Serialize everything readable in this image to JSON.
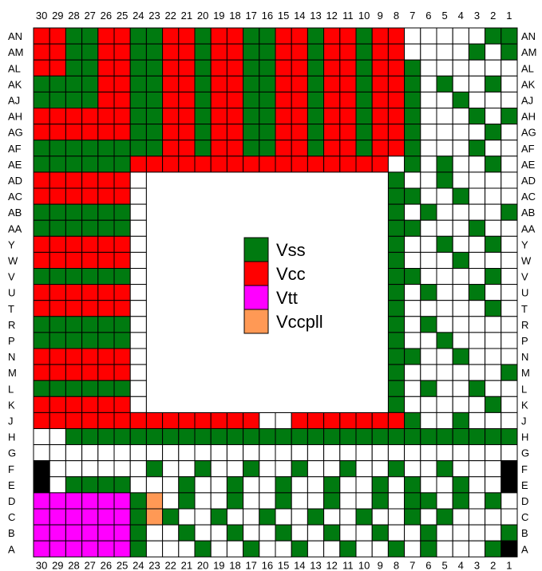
{
  "columns": [
    "30",
    "29",
    "28",
    "27",
    "26",
    "25",
    "24",
    "23",
    "22",
    "21",
    "20",
    "19",
    "18",
    "17",
    "16",
    "15",
    "14",
    "13",
    "12",
    "11",
    "10",
    "9",
    "8",
    "7",
    "6",
    "5",
    "4",
    "3",
    "2",
    "1"
  ],
  "rows": [
    "AN",
    "AM",
    "AL",
    "AK",
    "AJ",
    "AH",
    "AG",
    "AF",
    "AE",
    "AD",
    "AC",
    "AB",
    "AA",
    "Y",
    "W",
    "V",
    "U",
    "T",
    "R",
    "P",
    "N",
    "M",
    "L",
    "K",
    "J",
    "H",
    "G",
    "F",
    "E",
    "D",
    "C",
    "B",
    "A"
  ],
  "legend": [
    {
      "code": "G",
      "label": "Vss",
      "color": "#007a10"
    },
    {
      "code": "R",
      "label": "Vcc",
      "color": "#ff0000"
    },
    {
      "code": "M",
      "label": "Vtt",
      "color": "#ff00ff"
    },
    {
      "code": "O",
      "label": "Vccpll",
      "color": "#ff9955"
    }
  ],
  "other_colors": {
    "K": "#000000",
    "W": "#ffffff",
    "grid": "#000000"
  },
  "center_void": {
    "rows": [
      9,
      23
    ],
    "cols": [
      7,
      21
    ]
  },
  "grid": [
    "RRGGRRGGRRGRRGGRRGRRGRRWWWWWGG",
    "RRGGRRGGRRGRRGGRRGRRGRRWWWWGWG",
    "RRGGRRGGRRGRRGGRRGRRGRRGWWWWWW",
    "GGGGRRGGRRGRRGGRRGRRGRRGWGWWGW",
    "GGGGRRGGRRGRRGGRRGRRGRRGWWGWWW",
    "RRRRRRGGRRGRRGGRRGRRGRRGWWWGWG",
    "RRRRRRGGRRGRRGGRRGRRGRRGWWWWGW",
    "GGGGGGGGRRGRRGGRRGRRGRRGWWWGWW",
    "GGGGGGRRRRRRRRRRRRRRRRWGWGWWGW",
    "RRRRRRWWWWWWWWWWWWWWWRGWWGWWWW",
    "RRRRRRWWWWWWWWWWWWWWWRGGWWGWWW",
    "GGGGGGWWWWWWWWWWWWWWWRGWGWWWWG",
    "GGGGGGWWWWWWWWWWWWWWWRGGWWWGWW",
    "RRRRRRWWWWWWWWWWWWWWWRGWWGWWGW",
    "RRRRRRWWWWWWWWWWWWWWWRGWWWGWWW",
    "GGGGGGWWWWWWWWWWWWWWWRGGWWWWGW",
    "RRRRRRWWWWWWWWWWWWWWWRGWGWWGWW",
    "RRRRRRWWWWWWWWWWWWWWWRGWWWWWGW",
    "GGGGGGWWWWWWWWWWWWWWWRGWGWWWWW",
    "GGGGGGWWWWWWWWWWWWWWWRGWWGWWWW",
    "RRRRRRWWWWWWWWWWWWWWWRGGWWGWWW",
    "RRRRRRWWWWWWWWWWWWWWWRGWWWWWWG",
    "GGGGGGWWWWWWWWWWWWWWWRGWGWWGWW",
    "RRRRRRWWWWWWWWWWWWWWWRGWWWWWGW",
    "RRRRRRRRRRRRRRWWRRRRRRRGWWGWWW",
    "WWGGGGGGGGGGGGGGGGGGGGGGGGGGGG",
    "WWWWWWWWWWWWWWWWWWWWWWWWWWWWWW",
    "KWWWWWWGWWGWWGWWGWWGWWGWWGWWWK",
    "KWGGGGWWWGWWGWWGWWGWWGWGWWGWWK",
    "MMMMMMGOWGWWGWWGWWGWWGWGGWGWGW",
    "MMMMMMGOGWWGWWGWWGWWGWWGWGWWWW",
    "MMMMMMGWWGWWGWWGWWGWWGWWGWWWWG",
    "MMMMMMGWWWGWWGWWGWWGWWGWGWWWGK"
  ]
}
